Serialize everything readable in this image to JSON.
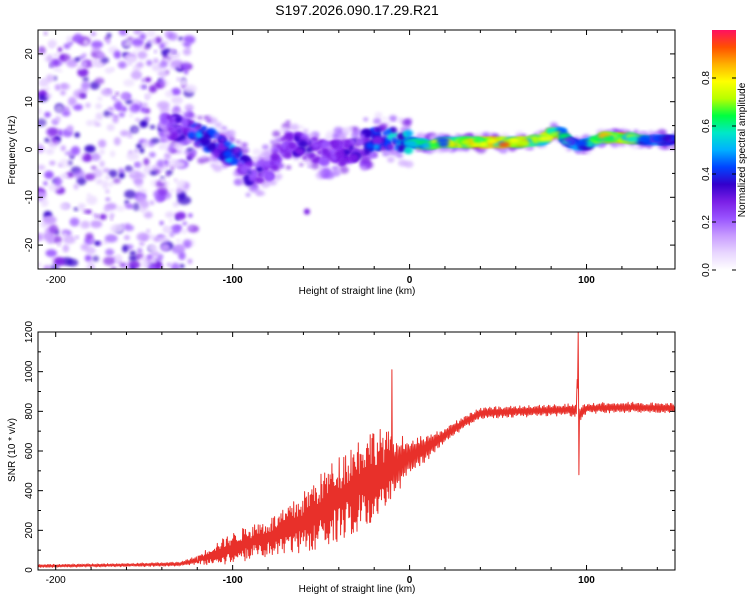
{
  "title": "S197.2026.090.17.29.R21",
  "colors": {
    "snr_line": "#e8302a",
    "frame": "#000000",
    "colormap": [
      "#ffffff",
      "#e8d6ff",
      "#c89cff",
      "#9a55ff",
      "#7a1fe6",
      "#3300cc",
      "#0044ff",
      "#00b0ff",
      "#00e8c8",
      "#00ff40",
      "#b8ff00",
      "#ffff00",
      "#ffb000",
      "#ff5000",
      "#ff1060"
    ]
  },
  "chart_data": [
    {
      "type": "heatmap",
      "xlabel": "Height of straight line (km)",
      "ylabel": "Frequency (Hz)",
      "xlim": [
        -210,
        150
      ],
      "ylim": [
        -25,
        25
      ],
      "xticks": [
        -200,
        -100,
        0,
        100
      ],
      "xtick_labels": [
        "-200",
        "-100",
        "0",
        "100"
      ],
      "yticks": [
        20,
        10,
        0,
        -10,
        -20
      ],
      "ytick_labels": [
        "20",
        "10",
        "0",
        "-10",
        "-20"
      ],
      "colorbar": {
        "label": "Normalized spectral amplitude",
        "range": [
          0.0,
          1.0
        ],
        "ticks": [
          0.0,
          0.2,
          0.4,
          0.6,
          0.8
        ],
        "tick_labels": [
          "0.0",
          "0.2",
          "0.4",
          "0.6",
          "0.8"
        ]
      },
      "ridge": {
        "x": [
          -140,
          -130,
          -120,
          -110,
          -100,
          -90,
          -80,
          -70,
          -60,
          -50,
          -40,
          -30,
          -20,
          -10,
          0,
          10,
          20,
          40,
          60,
          75,
          80,
          85,
          90,
          95,
          100,
          110,
          120,
          135,
          150
        ],
        "freq": [
          5,
          4.5,
          3,
          1.5,
          -1.5,
          -5,
          -4,
          1,
          0.5,
          -0.5,
          -1,
          0,
          2.5,
          2,
          1.5,
          1,
          1.5,
          1.5,
          1.5,
          2,
          3.5,
          3.8,
          1.5,
          0.8,
          1,
          2.5,
          2.5,
          2,
          2
        ],
        "amplitude": [
          0.25,
          0.35,
          0.45,
          0.42,
          0.5,
          0.32,
          0.3,
          0.3,
          0.35,
          0.28,
          0.3,
          0.38,
          0.45,
          0.55,
          0.6,
          0.7,
          0.85,
          0.95,
          0.9,
          0.7,
          0.95,
          0.8,
          0.55,
          0.5,
          0.6,
          0.85,
          0.92,
          0.5,
          0.45
        ]
      }
    },
    {
      "type": "line",
      "xlabel": "Height of straight line (km)",
      "ylabel": "SNR (10 * v/v)",
      "xlim": [
        -210,
        150
      ],
      "ylim": [
        0,
        1200
      ],
      "xticks": [
        -200,
        -100,
        0,
        100
      ],
      "xtick_labels": [
        "-200",
        "-100",
        "0",
        "100"
      ],
      "yticks": [
        0,
        200,
        400,
        600,
        800,
        1000,
        1200
      ],
      "ytick_labels": [
        "0",
        "200",
        "400",
        "600",
        "800",
        "1000",
        "1200"
      ],
      "series": [
        {
          "name": "SNR",
          "x": [
            -210,
            -160,
            -130,
            -120,
            -110,
            -100,
            -90,
            -80,
            -70,
            -60,
            -50,
            -40,
            -30,
            -20,
            -10,
            0,
            10,
            20,
            30,
            40,
            60,
            80,
            90,
            94,
            95,
            96,
            100,
            120,
            150
          ],
          "y": [
            20,
            25,
            30,
            50,
            80,
            110,
            140,
            160,
            190,
            240,
            300,
            360,
            420,
            480,
            520,
            570,
            620,
            680,
            740,
            790,
            800,
            805,
            810,
            800,
            960,
            780,
            815,
            820,
            815
          ],
          "spread": [
            8,
            8,
            10,
            20,
            50,
            70,
            80,
            90,
            110,
            140,
            170,
            200,
            220,
            220,
            160,
            90,
            60,
            40,
            30,
            28,
            28,
            28,
            28,
            40,
            60,
            40,
            25,
            25,
            25
          ]
        }
      ],
      "spikes": [
        {
          "x": 95.3,
          "y": 1200
        },
        {
          "x": 95.7,
          "y": 480
        },
        {
          "x": -10,
          "y": 1010
        }
      ]
    }
  ]
}
